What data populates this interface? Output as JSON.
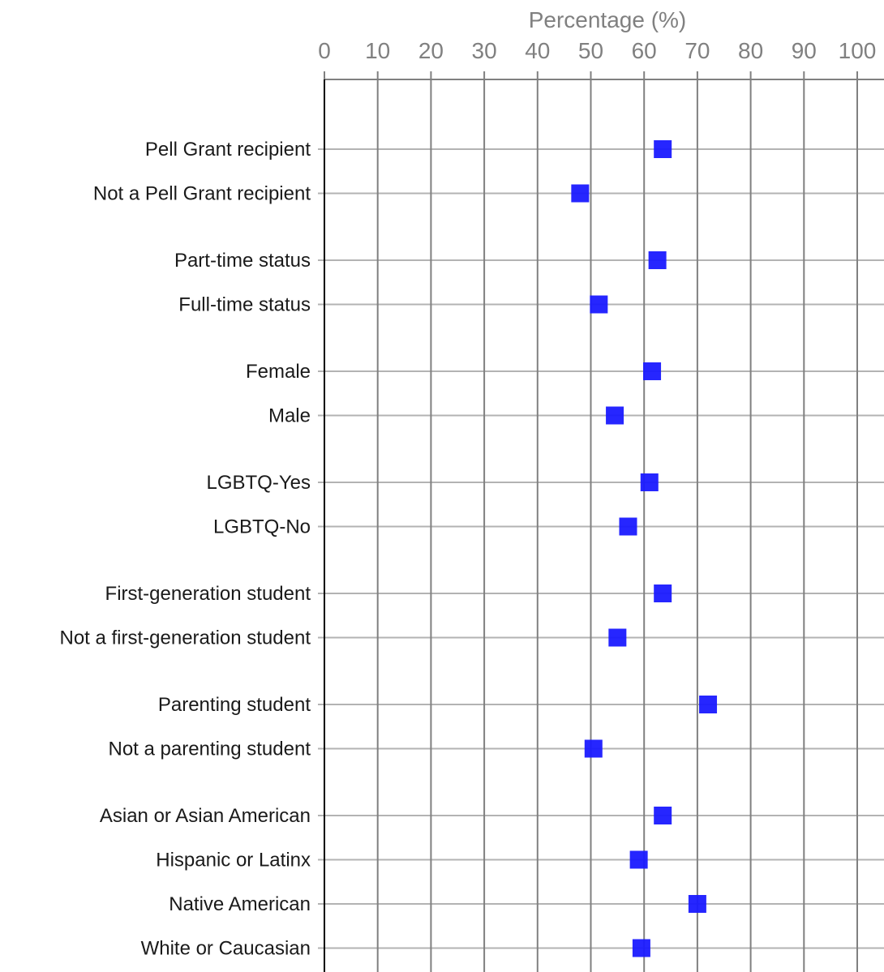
{
  "chart_data": {
    "type": "scatter",
    "xlabel": "Percentage (%)",
    "xlim": [
      0,
      100
    ],
    "xticks": [
      0,
      10,
      20,
      30,
      40,
      50,
      60,
      70,
      80,
      90,
      100
    ],
    "grid": true,
    "marker": "square",
    "marker_color": "#1a1aff",
    "groups": [
      [
        "Pell Grant recipient",
        "Not a Pell Grant recipient"
      ],
      [
        "Part-time status",
        "Full-time status"
      ],
      [
        "Female",
        "Male"
      ],
      [
        "LGBTQ-Yes",
        "LGBTQ-No"
      ],
      [
        "First-generation student",
        "Not a first-generation student"
      ],
      [
        "Parenting student",
        "Not a parenting student"
      ],
      [
        "Asian or Asian American",
        "Hispanic or Latinx",
        "Native American",
        "White or Caucasian"
      ]
    ],
    "points": [
      {
        "category": "Pell Grant recipient",
        "value": 63.5
      },
      {
        "category": "Not a Pell Grant recipient",
        "value": 48
      },
      {
        "category": "Part-time status",
        "value": 62.5
      },
      {
        "category": "Full-time status",
        "value": 51.5
      },
      {
        "category": "Female",
        "value": 61.5
      },
      {
        "category": "Male",
        "value": 54.5
      },
      {
        "category": "LGBTQ-Yes",
        "value": 61
      },
      {
        "category": "LGBTQ-No",
        "value": 57
      },
      {
        "category": "First-generation student",
        "value": 63.5
      },
      {
        "category": "Not a first-generation student",
        "value": 55
      },
      {
        "category": "Parenting student",
        "value": 72
      },
      {
        "category": "Not a parenting student",
        "value": 50.5
      },
      {
        "category": "Asian or Asian American",
        "value": 63.5
      },
      {
        "category": "Hispanic or Latinx",
        "value": 59
      },
      {
        "category": "Native American",
        "value": 70
      },
      {
        "category": "White or Caucasian",
        "value": 59.5
      }
    ]
  }
}
